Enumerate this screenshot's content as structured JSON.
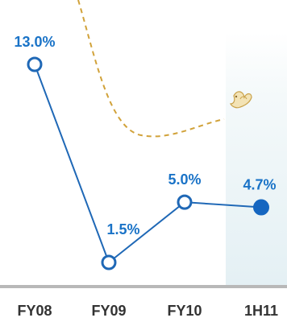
{
  "chart_data": {
    "type": "line",
    "categories": [
      "FY08",
      "FY09",
      "FY10",
      "1H11"
    ],
    "series": [
      {
        "values": [
          13.0,
          1.5,
          5.0,
          4.7
        ],
        "labels": [
          "13.0%",
          "1.5%",
          "5.0%",
          "4.7%"
        ],
        "marker_styles": [
          "hollow",
          "hollow",
          "hollow",
          "filled"
        ]
      }
    ],
    "ylim": [
      0,
      15
    ],
    "grid": false,
    "legend": "none",
    "highlighted_category": "1H11",
    "decorations": [
      "dashed-trend-curve",
      "bird-icon"
    ]
  },
  "colors": {
    "line": "#1f68b6",
    "marker_fill": "#ffffff",
    "marker_filled": "#1566c0",
    "data_label": "#1a73c7",
    "tick_label": "#333333",
    "axis": "#b8b8b8",
    "highlight_band": "#eaf3f6",
    "dashed_curve": "#d1a23a"
  }
}
